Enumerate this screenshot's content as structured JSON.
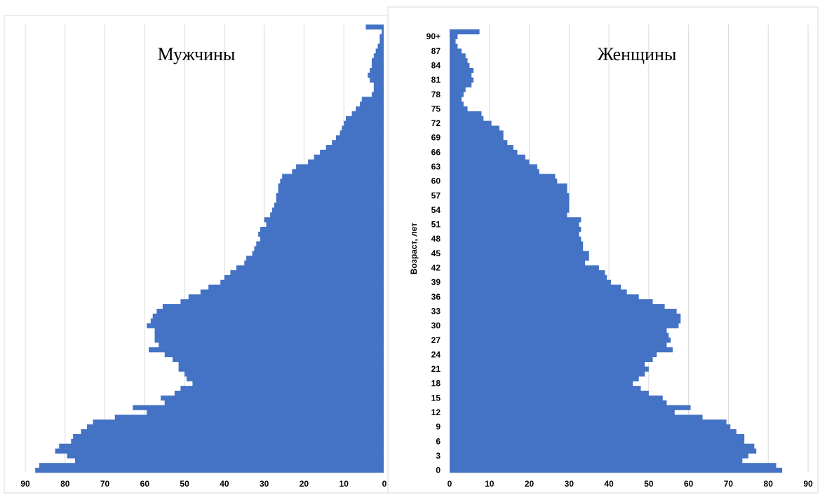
{
  "chart_data": [
    {
      "type": "bar",
      "orientation": "horizontal",
      "x_direction": "reversed",
      "title": "Мужчины",
      "xlim": [
        0,
        90
      ],
      "x_tick_labels": [
        "90",
        "80",
        "70",
        "60",
        "50",
        "40",
        "30",
        "20",
        "10",
        "0"
      ],
      "ages": [
        "0",
        "1",
        "2",
        "3",
        "4",
        "5",
        "6",
        "7",
        "8",
        "9",
        "10",
        "11",
        "12",
        "13",
        "14",
        "15",
        "16",
        "17",
        "18",
        "19",
        "20",
        "21",
        "22",
        "23",
        "24",
        "25",
        "26",
        "27",
        "28",
        "29",
        "30",
        "31",
        "32",
        "33",
        "34",
        "35",
        "36",
        "37",
        "38",
        "39",
        "40",
        "41",
        "42",
        "43",
        "44",
        "45",
        "46",
        "47",
        "48",
        "49",
        "50",
        "51",
        "52",
        "53",
        "54",
        "55",
        "56",
        "57",
        "58",
        "59",
        "60",
        "61",
        "62",
        "63",
        "64",
        "65",
        "66",
        "67",
        "68",
        "69",
        "70",
        "71",
        "72",
        "73",
        "74",
        "75",
        "76",
        "77",
        "78",
        "79",
        "80",
        "81",
        "82",
        "83",
        "84",
        "85",
        "86",
        "87",
        "88",
        "89",
        "90+"
      ],
      "values": [
        87.5,
        86.5,
        77.5,
        79.5,
        82.5,
        81.5,
        78.5,
        78,
        76,
        74.5,
        73,
        67.5,
        59.5,
        63,
        55,
        56,
        52.5,
        51,
        48,
        49.5,
        50,
        51.5,
        51.5,
        53,
        55,
        59,
        56.5,
        57.5,
        57.5,
        57.5,
        59.5,
        58.5,
        58,
        57,
        55.5,
        51,
        49,
        46,
        44,
        41,
        40,
        38.5,
        37,
        35,
        34.5,
        33,
        32.5,
        32,
        31,
        31.5,
        31,
        29.5,
        30,
        28.5,
        28,
        27.5,
        27,
        27,
        26.5,
        26.5,
        26,
        25.5,
        23,
        22,
        19,
        17.5,
        16,
        14.5,
        13,
        12,
        11,
        10.5,
        10,
        9.5,
        8,
        7,
        6,
        5.5,
        3,
        2.5,
        2.5,
        3.5,
        4,
        3.5,
        3,
        3,
        2.5,
        2,
        1.5,
        1,
        1,
        0.5,
        4.5
      ],
      "grid": true,
      "legend": "none"
    },
    {
      "type": "bar",
      "orientation": "horizontal",
      "title": "Женщины",
      "ylabel": "Возраст, лет",
      "xlim": [
        0,
        90
      ],
      "x_tick_labels": [
        "0",
        "10",
        "20",
        "30",
        "40",
        "50",
        "60",
        "70",
        "80",
        "90"
      ],
      "y_tick_labels": [
        "0",
        "3",
        "6",
        "9",
        "12",
        "15",
        "18",
        "21",
        "24",
        "27",
        "30",
        "33",
        "36",
        "39",
        "42",
        "45",
        "48",
        "51",
        "54",
        "57",
        "60",
        "63",
        "66",
        "69",
        "72",
        "75",
        "78",
        "81",
        "84",
        "87",
        "90+"
      ],
      "ages": [
        "0",
        "1",
        "2",
        "3",
        "4",
        "5",
        "6",
        "7",
        "8",
        "9",
        "10",
        "11",
        "12",
        "13",
        "14",
        "15",
        "16",
        "17",
        "18",
        "19",
        "20",
        "21",
        "22",
        "23",
        "24",
        "25",
        "26",
        "27",
        "28",
        "29",
        "30",
        "31",
        "32",
        "33",
        "34",
        "35",
        "36",
        "37",
        "38",
        "39",
        "40",
        "41",
        "42",
        "43",
        "44",
        "45",
        "46",
        "47",
        "48",
        "49",
        "50",
        "51",
        "52",
        "53",
        "54",
        "55",
        "56",
        "57",
        "58",
        "59",
        "60",
        "61",
        "62",
        "63",
        "64",
        "65",
        "66",
        "67",
        "68",
        "69",
        "70",
        "71",
        "72",
        "73",
        "74",
        "75",
        "76",
        "77",
        "78",
        "79",
        "80",
        "81",
        "82",
        "83",
        "84",
        "85",
        "86",
        "87",
        "88",
        "89",
        "90+"
      ],
      "values": [
        83.5,
        82,
        73.5,
        75,
        77,
        76.5,
        74,
        74,
        72,
        70.5,
        69.5,
        63.5,
        56.5,
        60.5,
        54.5,
        53.5,
        50,
        48,
        46,
        47.5,
        49,
        50,
        49,
        51,
        52,
        56,
        54.5,
        55.5,
        55,
        54.5,
        57.5,
        58,
        58,
        57,
        54,
        51,
        47.5,
        44.5,
        43,
        40.5,
        39.5,
        39,
        37.5,
        34,
        35,
        35,
        33.5,
        33.5,
        33,
        32.5,
        33,
        32.5,
        33,
        29.5,
        30,
        30,
        30,
        30,
        29.5,
        29.5,
        27,
        26.5,
        22.5,
        22,
        20,
        19,
        17,
        16,
        14.5,
        13.5,
        13.5,
        12.5,
        10.5,
        8.5,
        8,
        4.5,
        3.5,
        3,
        3.5,
        4,
        5.5,
        6,
        5.5,
        6,
        5,
        4.5,
        4,
        3,
        2,
        1.5,
        2,
        7.5
      ],
      "grid": true,
      "legend": "none"
    }
  ]
}
